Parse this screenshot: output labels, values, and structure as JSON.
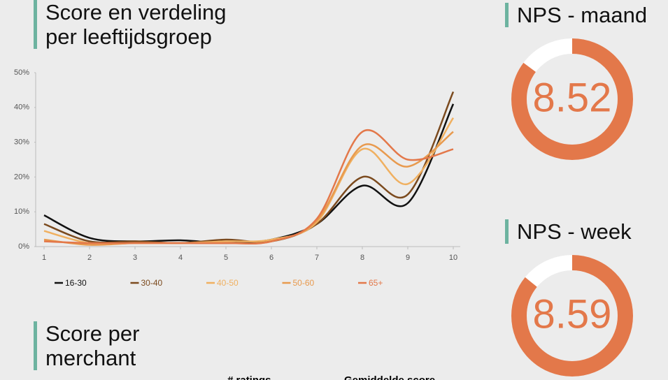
{
  "chart_data": [
    {
      "type": "line",
      "title": "Score en verdeling per leeftijdsgroep",
      "x": [
        1,
        2,
        3,
        4,
        5,
        6,
        7,
        8,
        9,
        10
      ],
      "xlim": [
        1,
        10
      ],
      "xticks": [
        1,
        2,
        3,
        4,
        5,
        6,
        7,
        8,
        9,
        10
      ],
      "ylim": [
        0,
        50
      ],
      "yticks": [
        {
          "value": 0,
          "label": "0%"
        },
        {
          "value": 10,
          "label": "10%"
        },
        {
          "value": 20,
          "label": "20%"
        },
        {
          "value": 30,
          "label": "30%"
        },
        {
          "value": 40,
          "label": "40%"
        },
        {
          "value": 50,
          "label": "50%"
        }
      ],
      "legend": "bottom",
      "series": [
        {
          "name": "16-30",
          "color": "#111111",
          "values": [
            9,
            2.5,
            1.5,
            1.8,
            1,
            2,
            6.5,
            17.5,
            12.5,
            41
          ]
        },
        {
          "name": "30-40",
          "color": "#7b4a1e",
          "values": [
            6.5,
            1.5,
            1.5,
            1,
            2,
            1.5,
            6.5,
            20,
            15,
            44.5
          ]
        },
        {
          "name": "40-50",
          "color": "#f0b060",
          "values": [
            4.5,
            1,
            1,
            1,
            1.5,
            2,
            7,
            28,
            18,
            37
          ]
        },
        {
          "name": "50-60",
          "color": "#e89a4e",
          "values": [
            2,
            0.5,
            1,
            1,
            1,
            1.5,
            7.5,
            29,
            23,
            33
          ]
        },
        {
          "name": "65+",
          "color": "#e3784a",
          "values": [
            1.5,
            1,
            1,
            1,
            1,
            1.5,
            8,
            33,
            25,
            28
          ]
        }
      ]
    },
    {
      "type": "gauge",
      "title": "NPS - maand",
      "value": 8.52,
      "ylim": [
        0,
        10
      ],
      "color": "#e3784a"
    },
    {
      "type": "gauge",
      "title": "NPS - week",
      "value": 8.59,
      "ylim": [
        0,
        10
      ],
      "color": "#e3784a"
    }
  ],
  "merchant": {
    "title": "Score per merchant",
    "columns": [
      "# ratings",
      "Gemiddelde score"
    ]
  }
}
